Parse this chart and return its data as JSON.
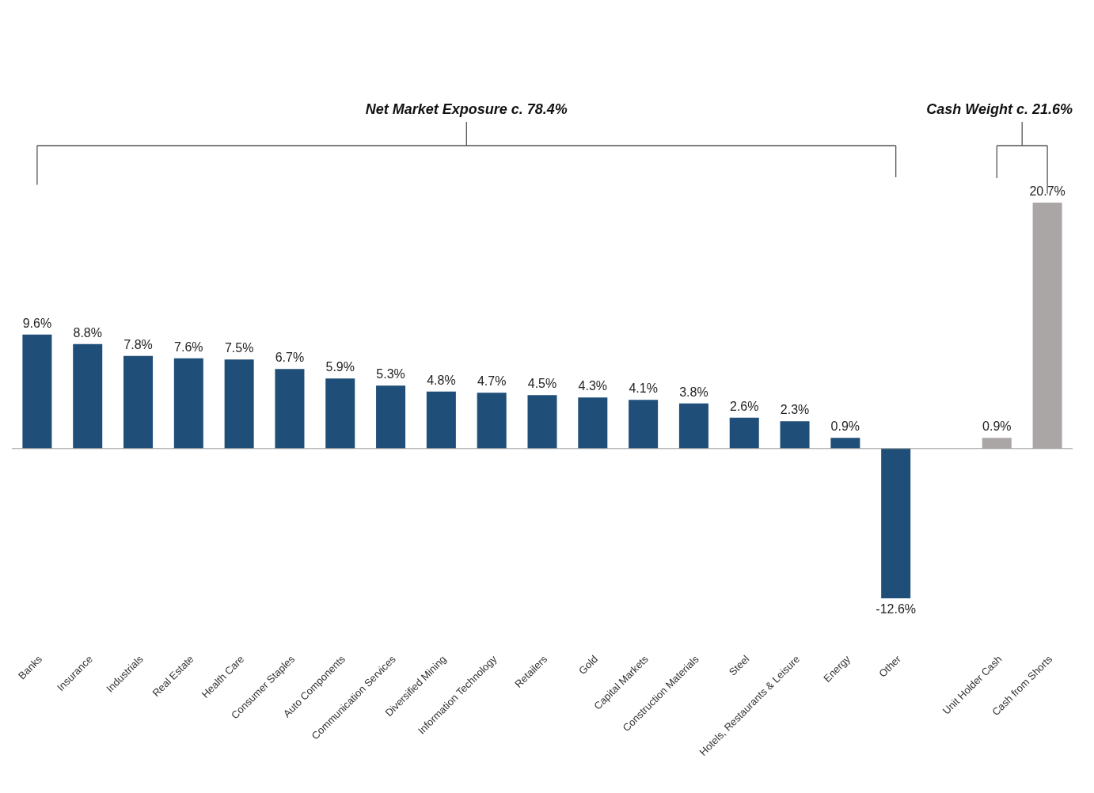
{
  "chart_data": {
    "type": "bar",
    "categories": [
      "Banks",
      "Insurance",
      "Industrials",
      "Real Estate",
      "Health Care",
      "Consumer Staples",
      "Auto Components",
      "Communication Services",
      "Diversified Mining",
      "Information Technology",
      "Retailers",
      "Gold",
      "Capital Markets",
      "Construction Materials",
      "Steel",
      "Hotels, Restaurants & Leisure",
      "Energy",
      "Other",
      null,
      "Unit Holder Cash",
      "Cash from Shorts"
    ],
    "values": [
      9.6,
      8.8,
      7.8,
      7.6,
      7.5,
      6.7,
      5.9,
      5.3,
      4.8,
      4.7,
      4.5,
      4.3,
      4.1,
      3.8,
      2.6,
      2.3,
      0.9,
      -12.6,
      null,
      0.9,
      20.7
    ],
    "value_labels": [
      "9.6%",
      "8.8%",
      "7.8%",
      "7.6%",
      "7.5%",
      "6.7%",
      "5.9%",
      "5.3%",
      "4.8%",
      "4.7%",
      "4.5%",
      "4.3%",
      "4.1%",
      "3.8%",
      "2.6%",
      "2.3%",
      "0.9%",
      "-12.6%",
      null,
      "0.9%",
      "20.7%"
    ],
    "colors": [
      "#1f4e79",
      "#1f4e79",
      "#1f4e79",
      "#1f4e79",
      "#1f4e79",
      "#1f4e79",
      "#1f4e79",
      "#1f4e79",
      "#1f4e79",
      "#1f4e79",
      "#1f4e79",
      "#1f4e79",
      "#1f4e79",
      "#1f4e79",
      "#1f4e79",
      "#1f4e79",
      "#1f4e79",
      "#1f4e79",
      null,
      "#aaa6a5",
      "#aaa6a5"
    ],
    "annotations": [
      "Net Market Exposure c. 78.4%",
      "Cash Weight c. 21.6%"
    ],
    "tick_labels": "x",
    "grid": false
  }
}
